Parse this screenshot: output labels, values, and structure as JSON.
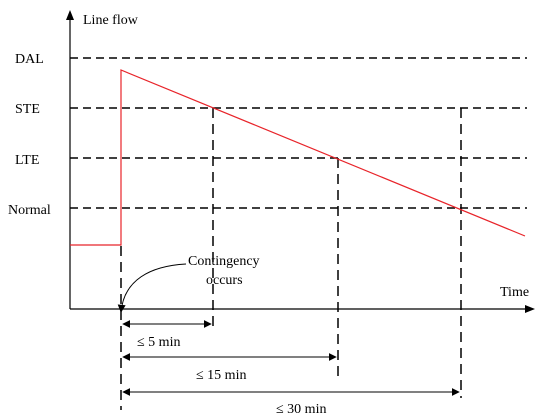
{
  "axes": {
    "y_label": "Line flow",
    "x_label": "Time"
  },
  "levels": [
    {
      "key": "dal",
      "label": "DAL"
    },
    {
      "key": "ste",
      "label": "STE"
    },
    {
      "key": "lte",
      "label": "LTE"
    },
    {
      "key": "normal",
      "label": "Normal"
    }
  ],
  "annotation": {
    "line1": "Contingency",
    "line2": "occurs"
  },
  "intervals": [
    {
      "key": "ste",
      "label": "≤ 5 min"
    },
    {
      "key": "lte",
      "label": "≤ 15 min"
    },
    {
      "key": "normal",
      "label": "≤ 30 min"
    }
  ],
  "colors": {
    "flow_line": "#e8242a",
    "axis": "#000000",
    "dashed_level": "#000000"
  }
}
